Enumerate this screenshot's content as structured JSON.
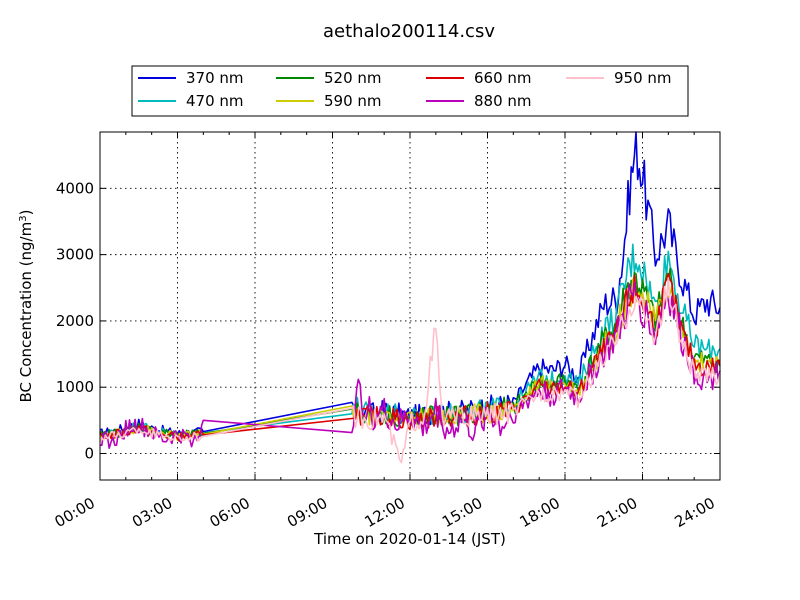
{
  "chart_data": {
    "type": "line",
    "title": "aethalo200114.csv",
    "xlabel": "Time on 2020-01-14 (JST)",
    "ylabel": "BC Concentration (ng/m",
    "ylabel_sup": "3",
    "ylabel_end": ")",
    "xlim": [
      "00:00",
      "24:00"
    ],
    "ylim": [
      -400,
      4850
    ],
    "x_ticks": [
      "00:00",
      "03:00",
      "06:00",
      "09:00",
      "12:00",
      "15:00",
      "18:00",
      "21:00",
      "24:00"
    ],
    "y_ticks": [
      "0",
      "1000",
      "2000",
      "3000",
      "4000"
    ],
    "grid": true,
    "legend_position": "top",
    "series": [
      {
        "name": "370 nm",
        "color": "#0000dd",
        "x": [
          "00:00",
          "01:00",
          "01:30",
          "02:00",
          "03:00",
          "04:00",
          "09:45",
          "10:30",
          "11:00",
          "12:00",
          "13:00",
          "14:00",
          "15:00",
          "16:00",
          "17:00",
          "17:30",
          "18:00",
          "18:30",
          "19:00",
          "19:30",
          "20:00",
          "20:15",
          "20:30",
          "20:45",
          "21:00",
          "21:30",
          "22:00",
          "22:30",
          "23:00",
          "23:30",
          "24:00"
        ],
        "y": [
          300,
          380,
          450,
          380,
          300,
          330,
          700,
          600,
          650,
          560,
          620,
          640,
          700,
          760,
          1300,
          1250,
          1350,
          1150,
          1700,
          2250,
          2350,
          3000,
          4000,
          4650,
          4200,
          3000,
          3450,
          2700,
          2100,
          2300,
          2200
        ]
      },
      {
        "name": "470 nm",
        "color": "#00bbbb",
        "x": [
          "00:00",
          "01:00",
          "01:30",
          "02:00",
          "03:00",
          "04:00",
          "09:45",
          "10:30",
          "11:00",
          "12:00",
          "13:00",
          "14:00",
          "15:00",
          "16:00",
          "17:00",
          "17:30",
          "18:00",
          "18:30",
          "19:00",
          "19:30",
          "20:00",
          "20:15",
          "20:30",
          "20:45",
          "21:00",
          "21:30",
          "22:00",
          "22:30",
          "23:00",
          "23:30",
          "24:00"
        ],
        "y": [
          280,
          350,
          430,
          360,
          280,
          310,
          760,
          580,
          620,
          530,
          590,
          600,
          660,
          720,
          1150,
          1100,
          1200,
          1020,
          1450,
          1850,
          2100,
          2500,
          2850,
          3020,
          2800,
          2200,
          3000,
          2200,
          1650,
          1550,
          1580
        ]
      },
      {
        "name": "520 nm",
        "color": "#008800",
        "x": [
          "00:00",
          "01:00",
          "01:30",
          "02:00",
          "03:00",
          "04:00",
          "09:45",
          "10:30",
          "11:00",
          "12:00",
          "13:00",
          "14:00",
          "15:00",
          "16:00",
          "17:00",
          "17:30",
          "18:00",
          "18:30",
          "19:00",
          "19:30",
          "20:00",
          "20:15",
          "20:30",
          "20:45",
          "21:00",
          "21:30",
          "22:00",
          "22:30",
          "23:00",
          "23:30",
          "24:00"
        ],
        "y": [
          270,
          340,
          410,
          340,
          270,
          300,
          700,
          560,
          600,
          520,
          570,
          580,
          640,
          690,
          1080,
          1030,
          1120,
          950,
          1350,
          1700,
          1950,
          2300,
          2550,
          2620,
          2450,
          2000,
          2700,
          1950,
          1450,
          1380,
          1400
        ]
      },
      {
        "name": "590 nm",
        "color": "#cccc00",
        "x": [
          "00:00",
          "01:00",
          "01:30",
          "02:00",
          "03:00",
          "04:00",
          "09:45",
          "10:30",
          "11:00",
          "12:00",
          "13:00",
          "14:00",
          "15:00",
          "16:00",
          "17:00",
          "17:30",
          "18:00",
          "18:30",
          "19:00",
          "19:30",
          "20:00",
          "20:15",
          "20:30",
          "20:45",
          "21:00",
          "21:30",
          "22:00",
          "22:30",
          "23:00",
          "23:30",
          "24:00"
        ],
        "y": [
          260,
          330,
          400,
          330,
          260,
          290,
          620,
          550,
          580,
          510,
          560,
          570,
          620,
          670,
          1050,
          1000,
          1080,
          920,
          1300,
          1620,
          1880,
          2200,
          2450,
          2530,
          2380,
          1950,
          2600,
          1900,
          1400,
          1330,
          1350
        ]
      },
      {
        "name": "660 nm",
        "color": "#dd0000",
        "x": [
          "00:00",
          "01:00",
          "01:30",
          "02:00",
          "03:00",
          "04:00",
          "09:45",
          "10:30",
          "11:00",
          "12:00",
          "13:00",
          "14:00",
          "15:00",
          "16:00",
          "17:00",
          "17:30",
          "18:00",
          "18:30",
          "19:00",
          "19:30",
          "20:00",
          "20:15",
          "20:30",
          "20:45",
          "21:00",
          "21:30",
          "22:00",
          "22:30",
          "23:00",
          "23:30",
          "24:00"
        ],
        "y": [
          250,
          320,
          390,
          320,
          250,
          280,
          650,
          540,
          570,
          500,
          550,
          560,
          610,
          650,
          1000,
          960,
          1040,
          880,
          1250,
          1550,
          1800,
          2100,
          2380,
          2470,
          2300,
          1900,
          2550,
          1850,
          1350,
          1300,
          1320
        ]
      },
      {
        "name": "880 nm",
        "color": "#bb00bb",
        "x": [
          "00:00",
          "00:30",
          "01:00",
          "01:30",
          "02:00",
          "02:30",
          "03:00",
          "03:45",
          "04:00",
          "09:45",
          "10:00",
          "10:30",
          "11:00",
          "11:30",
          "12:00",
          "12:30",
          "13:00",
          "13:30",
          "14:00",
          "14:30",
          "15:00",
          "15:30",
          "16:00",
          "17:00",
          "17:30",
          "18:00",
          "18:30",
          "19:00",
          "19:30",
          "20:00",
          "20:15",
          "20:30",
          "20:45",
          "21:00",
          "21:30",
          "22:00",
          "22:30",
          "23:00",
          "23:30",
          "24:00"
        ],
        "y": [
          250,
          150,
          380,
          430,
          300,
          200,
          280,
          200,
          500,
          500,
          900,
          580,
          620,
          420,
          580,
          350,
          650,
          320,
          500,
          300,
          650,
          400,
          600,
          950,
          880,
          980,
          820,
          1200,
          1500,
          1750,
          2000,
          2300,
          2380,
          2200,
          1800,
          2450,
          1750,
          1250,
          1100,
          1250
        ]
      },
      {
        "name": "950 nm",
        "color": "#ffc0cb",
        "x": [
          "00:00",
          "01:00",
          "01:30",
          "02:00",
          "03:00",
          "04:00",
          "09:45",
          "10:30",
          "11:00",
          "11:40",
          "12:00",
          "12:30",
          "13:00",
          "13:15",
          "13:30",
          "14:00",
          "15:00",
          "16:00",
          "17:00",
          "17:30",
          "18:00",
          "18:30",
          "19:00",
          "19:30",
          "20:00",
          "20:15",
          "20:30",
          "20:45",
          "21:00",
          "21:30",
          "22:00",
          "22:30",
          "23:00",
          "23:30",
          "24:00"
        ],
        "y": [
          230,
          300,
          370,
          300,
          230,
          260,
          560,
          520,
          550,
          -150,
          480,
          520,
          1850,
          480,
          560,
          540,
          590,
          620,
          920,
          880,
          950,
          800,
          1150,
          1450,
          1700,
          1950,
          2250,
          2330,
          2150,
          1800,
          2500,
          1700,
          1200,
          1150,
          1200
        ]
      }
    ]
  }
}
